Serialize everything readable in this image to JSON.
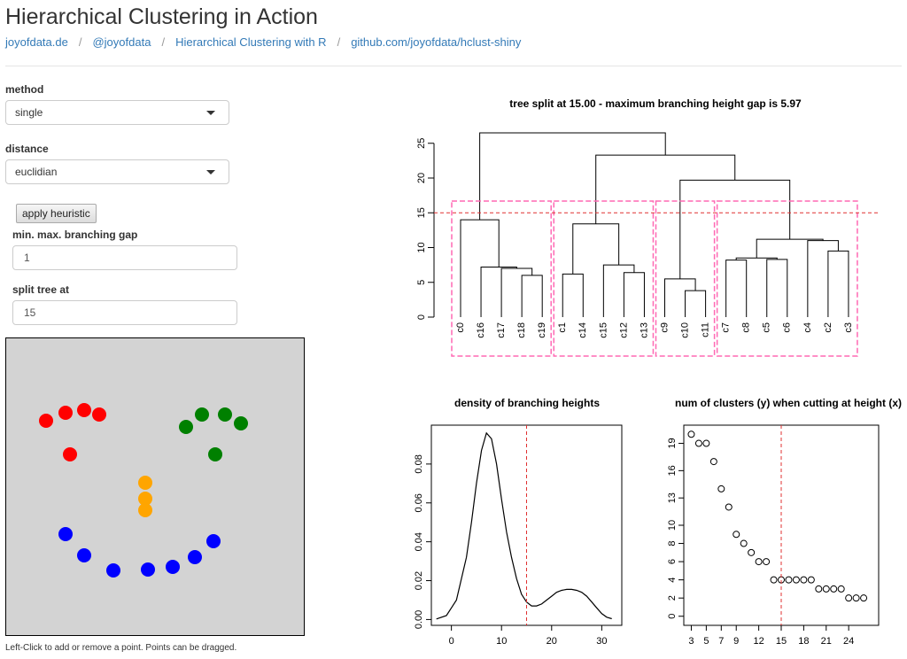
{
  "page": {
    "title": "Hierarchical Clustering in Action",
    "links": [
      "joyofdata.de",
      "@joyofdata",
      "Hierarchical Clustering with R",
      "github.com/joyofdata/hclust-shiny"
    ],
    "separator": "/"
  },
  "controls": {
    "method_label": "method",
    "method_value": "single",
    "distance_label": "distance",
    "distance_value": "euclidian",
    "apply_button": "apply heuristic",
    "gap_label": "min. max. branching gap",
    "gap_value": "1",
    "split_label": "split tree at",
    "split_value": "15",
    "canvas_hint": "Left-Click to add or remove a point. Points can be dragged."
  },
  "colors": {
    "red": "#ff0000",
    "green": "#008000",
    "orange": "#ffa500",
    "blue": "#0000ff",
    "cut_line": "#e03030",
    "box": "#ff69b4",
    "canvas_bg": "#d3d3d3"
  },
  "points": [
    {
      "c": "red"
    },
    {
      "c": "red"
    },
    {
      "c": "red"
    },
    {
      "c": "red"
    },
    {
      "c": "red"
    },
    {
      "c": "green"
    },
    {
      "c": "green"
    },
    {
      "c": "green"
    },
    {
      "c": "green"
    },
    {
      "c": "green"
    },
    {
      "c": "orange"
    },
    {
      "c": "orange"
    },
    {
      "c": "orange"
    },
    {
      "c": "blue"
    },
    {
      "c": "blue"
    },
    {
      "c": "blue"
    },
    {
      "c": "blue"
    },
    {
      "c": "blue"
    },
    {
      "c": "blue"
    },
    {
      "c": "blue"
    }
  ],
  "chart_data": [
    {
      "type": "dendrogram",
      "title": "tree split at 15.00 - maximum branching height gap is 5.97",
      "leaves": [
        "c0",
        "c16",
        "c17",
        "c18",
        "c19",
        "c1",
        "c14",
        "c15",
        "c12",
        "c13",
        "c9",
        "c10",
        "c11",
        "c7",
        "c8",
        "c5",
        "c6",
        "c4",
        "c2",
        "c3"
      ],
      "y_ticks": [
        0,
        5,
        10,
        15,
        20,
        25
      ],
      "ylim": [
        0,
        27
      ],
      "cut_height": 15,
      "merges": [
        {
          "a": 3,
          "b": 4,
          "h": 6
        },
        {
          "a": 2,
          "b": "m0",
          "h": 7
        },
        {
          "a": 1,
          "b": "m1",
          "h": 7.2
        },
        {
          "a": 0,
          "b": "m2",
          "h": 14
        },
        {
          "a": 5,
          "b": 6,
          "h": 6.2
        },
        {
          "a": 8,
          "b": 9,
          "h": 6.4
        },
        {
          "a": 7,
          "b": "m5",
          "h": 7.5
        },
        {
          "a": "m4",
          "b": "m6",
          "h": 13.4
        },
        {
          "a": 11,
          "b": 12,
          "h": 3.8
        },
        {
          "a": 10,
          "b": "m8",
          "h": 5.5
        },
        {
          "a": 13,
          "b": 14,
          "h": 8.2
        },
        {
          "a": 15,
          "b": 16,
          "h": 8.3
        },
        {
          "a": "m10",
          "b": "m11",
          "h": 8.5
        },
        {
          "a": 18,
          "b": 19,
          "h": 9.5
        },
        {
          "a": 17,
          "b": "m13",
          "h": 11
        },
        {
          "a": "m12",
          "b": "m14",
          "h": 11.2
        },
        {
          "a": "m9",
          "b": "m15",
          "h": 19.7
        },
        {
          "a": "m7",
          "b": "m16",
          "h": 23.3
        },
        {
          "a": "m3",
          "b": "m17",
          "h": 26.5
        }
      ],
      "clusters": [
        [
          0,
          4
        ],
        [
          5,
          9
        ],
        [
          10,
          12
        ],
        [
          13,
          19
        ]
      ]
    },
    {
      "type": "line",
      "title": "density of branching heights",
      "x_ticks": [
        0,
        10,
        20,
        30
      ],
      "y_ticks": [
        0.0,
        0.02,
        0.04,
        0.06,
        0.08
      ],
      "xlim": [
        -4,
        34
      ],
      "ylim": [
        -0.003,
        0.1
      ],
      "vline": 15,
      "x": [
        -3,
        -1,
        1,
        3,
        4,
        5,
        6,
        7,
        8,
        9,
        10,
        11,
        12,
        13,
        14,
        15,
        16,
        17,
        18,
        19,
        20,
        21,
        22,
        23,
        24,
        25,
        26,
        27,
        28,
        29,
        30,
        31,
        32
      ],
      "y": [
        0.0003,
        0.002,
        0.01,
        0.032,
        0.05,
        0.07,
        0.087,
        0.096,
        0.093,
        0.08,
        0.062,
        0.045,
        0.032,
        0.021,
        0.013,
        0.009,
        0.007,
        0.007,
        0.008,
        0.01,
        0.012,
        0.014,
        0.015,
        0.0155,
        0.0155,
        0.015,
        0.014,
        0.012,
        0.009,
        0.006,
        0.003,
        0.0012,
        0.0004
      ]
    },
    {
      "type": "scatter",
      "title": "num of clusters (y) when cutting at height (x)",
      "x_ticks": [
        3,
        5,
        7,
        9,
        12,
        15,
        18,
        21,
        24
      ],
      "y_ticks": [
        0,
        2,
        4,
        6,
        8,
        10,
        13,
        16,
        19
      ],
      "xlim": [
        2,
        28
      ],
      "ylim": [
        -1,
        21
      ],
      "vline": 15,
      "x": [
        3,
        4,
        5,
        6,
        7,
        8,
        9,
        10,
        11,
        12,
        13,
        14,
        15,
        16,
        17,
        18,
        19,
        20,
        21,
        22,
        23,
        24,
        25,
        26
      ],
      "y": [
        20,
        19,
        19,
        17,
        14,
        12,
        9,
        8,
        7,
        6,
        6,
        4,
        4,
        4,
        4,
        4,
        4,
        3,
        3,
        3,
        3,
        2,
        2,
        2
      ]
    }
  ]
}
